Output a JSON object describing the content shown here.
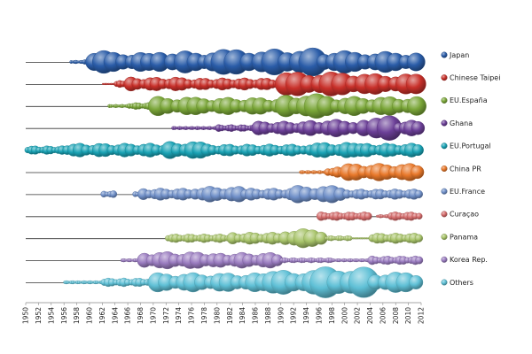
{
  "chart_data": {
    "type": "bubble-timeline",
    "x_ticks": [
      "1950",
      "1952",
      "1954",
      "1956",
      "1958",
      "1960",
      "1962",
      "1964",
      "1966",
      "1968",
      "1970",
      "1972",
      "1974",
      "1976",
      "1978",
      "1980",
      "1982",
      "1984",
      "1986",
      "1988",
      "1990",
      "1992",
      "1994",
      "1996",
      "1998",
      "2000",
      "2002",
      "2004",
      "2006",
      "2008",
      "2010",
      "2012"
    ],
    "xlim": [
      1950,
      2012
    ],
    "legend_position": "right",
    "series": [
      {
        "name": "Japan",
        "color": "#2a5ca8",
        "segments": [
          {
            "start": 1957,
            "end": 1959,
            "size": 2
          },
          {
            "start": 1959,
            "end": 1960,
            "size": 4
          },
          {
            "start": 1960,
            "end": 1966,
            "size": 13
          },
          {
            "start": 1966,
            "end": 1970,
            "size": 11
          },
          {
            "start": 1970,
            "end": 1976,
            "size": 14
          },
          {
            "start": 1976,
            "end": 1980,
            "size": 12
          },
          {
            "start": 1980,
            "end": 1988,
            "size": 15
          },
          {
            "start": 1988,
            "end": 1996,
            "size": 16
          },
          {
            "start": 1996,
            "end": 2004,
            "size": 13
          },
          {
            "start": 2004,
            "end": 2012,
            "size": 12
          }
        ]
      },
      {
        "name": "Chinese Taipei",
        "color": "#c8302a",
        "segments": [
          {
            "start": 1962,
            "end": 1964,
            "size": 1
          },
          {
            "start": 1964,
            "end": 1966,
            "size": 4
          },
          {
            "start": 1966,
            "end": 1976,
            "size": 8
          },
          {
            "start": 1976,
            "end": 1990,
            "size": 7
          },
          {
            "start": 1990,
            "end": 2004,
            "size": 14
          },
          {
            "start": 2004,
            "end": 2012,
            "size": 12
          }
        ]
      },
      {
        "name": "EU.España",
        "color": "#7aa638",
        "segments": [
          {
            "start": 1963,
            "end": 1966,
            "size": 2
          },
          {
            "start": 1966,
            "end": 1970,
            "size": 4
          },
          {
            "start": 1970,
            "end": 1976,
            "size": 11
          },
          {
            "start": 1976,
            "end": 1990,
            "size": 10
          },
          {
            "start": 1990,
            "end": 1998,
            "size": 14
          },
          {
            "start": 1998,
            "end": 2012,
            "size": 11
          }
        ]
      },
      {
        "name": "Ghana",
        "color": "#6b3f97",
        "segments": [
          {
            "start": 1973,
            "end": 1980,
            "size": 2
          },
          {
            "start": 1980,
            "end": 1986,
            "size": 4
          },
          {
            "start": 1986,
            "end": 1994,
            "size": 8
          },
          {
            "start": 1994,
            "end": 2002,
            "size": 10
          },
          {
            "start": 2002,
            "end": 2008,
            "size": 14
          },
          {
            "start": 2008,
            "end": 2012,
            "size": 9
          }
        ]
      },
      {
        "name": "EU.Portugal",
        "color": "#1aa3b5",
        "segments": [
          {
            "start": 1950,
            "end": 1956,
            "size": 5
          },
          {
            "start": 1956,
            "end": 1972,
            "size": 8
          },
          {
            "start": 1972,
            "end": 1978,
            "size": 10
          },
          {
            "start": 1978,
            "end": 1994,
            "size": 7
          },
          {
            "start": 1994,
            "end": 2002,
            "size": 9
          },
          {
            "start": 2002,
            "end": 2012,
            "size": 8
          }
        ]
      },
      {
        "name": "China PR",
        "color": "#e8782a",
        "segments": [
          {
            "start": 1993,
            "end": 1997,
            "size": 2
          },
          {
            "start": 1997,
            "end": 2000,
            "size": 6
          },
          {
            "start": 2000,
            "end": 2012,
            "size": 10
          }
        ]
      },
      {
        "name": "EU.France",
        "color": "#6f8fc8",
        "segments": [
          {
            "start": 1962,
            "end": 1964,
            "size": 4
          },
          {
            "start": 1967,
            "end": 1968,
            "size": 3
          },
          {
            "start": 1968,
            "end": 1976,
            "size": 7
          },
          {
            "start": 1976,
            "end": 1984,
            "size": 9
          },
          {
            "start": 1984,
            "end": 1992,
            "size": 7
          },
          {
            "start": 1992,
            "end": 2000,
            "size": 10
          },
          {
            "start": 2000,
            "end": 2012,
            "size": 6
          }
        ]
      },
      {
        "name": "Curaçao",
        "color": "#d46a6a",
        "segments": [
          {
            "start": 1996,
            "end": 2004,
            "size": 5
          },
          {
            "start": 2005,
            "end": 2007,
            "size": 2
          },
          {
            "start": 2007,
            "end": 2012,
            "size": 5
          }
        ]
      },
      {
        "name": "Panama",
        "color": "#a8c46a",
        "segments": [
          {
            "start": 1972,
            "end": 1982,
            "size": 5
          },
          {
            "start": 1982,
            "end": 1990,
            "size": 7
          },
          {
            "start": 1990,
            "end": 1997,
            "size": 11
          },
          {
            "start": 1997,
            "end": 2001,
            "size": 3
          },
          {
            "start": 2001,
            "end": 2004,
            "size": 1
          },
          {
            "start": 2004,
            "end": 2012,
            "size": 6
          }
        ]
      },
      {
        "name": "Korea Rep.",
        "color": "#9a7cc0",
        "segments": [
          {
            "start": 1965,
            "end": 1968,
            "size": 2
          },
          {
            "start": 1968,
            "end": 1980,
            "size": 10
          },
          {
            "start": 1980,
            "end": 1990,
            "size": 9
          },
          {
            "start": 1990,
            "end": 1998,
            "size": 3
          },
          {
            "start": 1998,
            "end": 2004,
            "size": 2
          },
          {
            "start": 2004,
            "end": 2012,
            "size": 5
          }
        ]
      },
      {
        "name": "Others",
        "color": "#5fc0d6",
        "segments": [
          {
            "start": 1956,
            "end": 1962,
            "size": 2
          },
          {
            "start": 1962,
            "end": 1970,
            "size": 5
          },
          {
            "start": 1970,
            "end": 1988,
            "size": 11
          },
          {
            "start": 1988,
            "end": 1996,
            "size": 14
          },
          {
            "start": 1996,
            "end": 2004,
            "size": 18
          },
          {
            "start": 2004,
            "end": 2012,
            "size": 12
          }
        ]
      }
    ]
  }
}
